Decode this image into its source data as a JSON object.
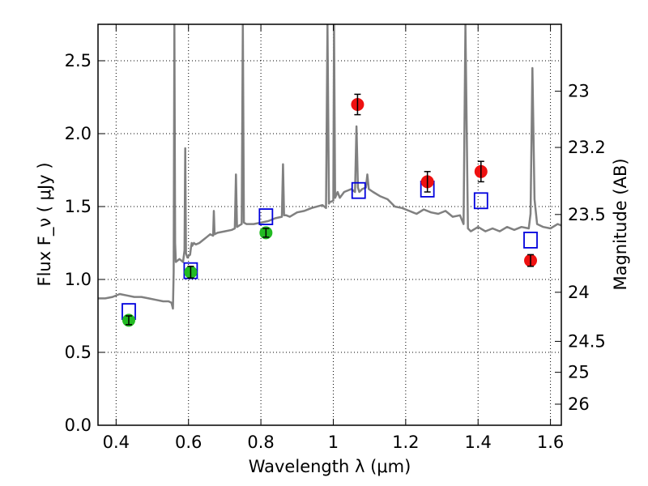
{
  "chart_data": {
    "type": "line",
    "xlabel": "Wavelength  λ (μm)",
    "ylabel": "Flux  F_ν  ( μJy )",
    "y2label": "Magnitude (AB)",
    "xlim": [
      0.35,
      1.63
    ],
    "ylim": [
      0.0,
      2.75
    ],
    "grid": true,
    "x_ticks": [
      0.4,
      0.6,
      0.8,
      1.0,
      1.2,
      1.4,
      1.6
    ],
    "x_tick_labels": [
      "0.4",
      "0.6",
      "0.8",
      "1",
      "1.2",
      "1.4",
      "1.6"
    ],
    "y_ticks": [
      0.0,
      0.5,
      1.0,
      1.5,
      2.0,
      2.5
    ],
    "y_tick_labels": [
      "0.0",
      "0.5",
      "1.0",
      "1.5",
      "2.0",
      "2.5"
    ],
    "magnitude_ticks": [
      {
        "label": "23",
        "mag": 23.0
      },
      {
        "label": "23.2",
        "mag": 23.2
      },
      {
        "label": "23.5",
        "mag": 23.5
      },
      {
        "label": "24",
        "mag": 24.0
      },
      {
        "label": "24.5",
        "mag": 24.5
      },
      {
        "label": "25",
        "mag": 25.0
      },
      {
        "label": "26",
        "mag": 26.0
      }
    ],
    "colors": {
      "model": "#808080",
      "red": "#ee1111",
      "green": "#22bb22",
      "model_photometry": "#0000dd",
      "errorbar": "#000000"
    },
    "model_spectrum": {
      "x": [
        0.35,
        0.37,
        0.39,
        0.41,
        0.43,
        0.45,
        0.47,
        0.49,
        0.51,
        0.53,
        0.545,
        0.553,
        0.557,
        0.559,
        0.561,
        0.563,
        0.565,
        0.57,
        0.575,
        0.58,
        0.585,
        0.589,
        0.591,
        0.593,
        0.597,
        0.6,
        0.6045,
        0.607,
        0.609,
        0.61,
        0.615,
        0.62,
        0.63,
        0.64,
        0.65,
        0.66,
        0.668,
        0.67,
        0.672,
        0.68,
        0.7,
        0.72,
        0.728,
        0.731,
        0.734,
        0.74,
        0.747,
        0.75,
        0.753,
        0.76,
        0.78,
        0.8,
        0.82,
        0.84,
        0.858,
        0.861,
        0.864,
        0.87,
        0.88,
        0.9,
        0.92,
        0.94,
        0.97,
        0.98,
        0.984,
        0.988,
        0.99,
        1.0,
        1.002,
        1.005,
        1.012,
        1.018,
        1.03,
        1.05,
        1.06,
        1.064,
        1.068,
        1.072,
        1.08,
        1.09,
        1.094,
        1.098,
        1.11,
        1.13,
        1.15,
        1.17,
        1.19,
        1.21,
        1.23,
        1.25,
        1.27,
        1.29,
        1.31,
        1.33,
        1.35,
        1.36,
        1.365,
        1.372,
        1.38,
        1.4,
        1.42,
        1.44,
        1.46,
        1.48,
        1.5,
        1.52,
        1.54,
        1.545,
        1.55,
        1.556,
        1.563,
        1.58,
        1.6,
        1.62,
        1.63
      ],
      "y": [
        0.87,
        0.87,
        0.88,
        0.9,
        0.89,
        0.88,
        0.88,
        0.87,
        0.86,
        0.85,
        0.85,
        0.84,
        0.8,
        1.05,
        2.75,
        1.25,
        1.12,
        1.13,
        1.14,
        1.13,
        1.12,
        1.2,
        1.9,
        1.18,
        1.15,
        1.16,
        1.17,
        1.22,
        1.25,
        1.23,
        1.25,
        1.24,
        1.25,
        1.27,
        1.29,
        1.31,
        1.3,
        1.47,
        1.31,
        1.32,
        1.33,
        1.34,
        1.35,
        1.72,
        1.36,
        1.37,
        1.38,
        2.75,
        1.39,
        1.38,
        1.38,
        1.39,
        1.4,
        1.42,
        1.43,
        1.79,
        1.44,
        1.44,
        1.43,
        1.46,
        1.47,
        1.49,
        1.51,
        1.49,
        2.75,
        1.52,
        1.53,
        1.54,
        2.75,
        1.56,
        1.6,
        1.56,
        1.6,
        1.62,
        1.6,
        2.05,
        1.63,
        1.6,
        1.62,
        1.63,
        1.72,
        1.62,
        1.6,
        1.57,
        1.55,
        1.5,
        1.49,
        1.47,
        1.45,
        1.48,
        1.46,
        1.45,
        1.47,
        1.43,
        1.44,
        1.38,
        2.75,
        1.35,
        1.33,
        1.36,
        1.33,
        1.35,
        1.33,
        1.36,
        1.34,
        1.36,
        1.35,
        1.45,
        2.45,
        1.55,
        1.38,
        1.36,
        1.35,
        1.38,
        1.37
      ]
    },
    "observed_red": [
      {
        "x": 1.067,
        "y": 2.2,
        "err": 0.07
      },
      {
        "x": 1.26,
        "y": 1.67,
        "err": 0.07
      },
      {
        "x": 1.408,
        "y": 1.74,
        "err": 0.07
      },
      {
        "x": 1.545,
        "y": 1.13,
        "err": 0.04
      }
    ],
    "observed_green": [
      {
        "x": 0.435,
        "y": 0.72,
        "err": 0.03
      },
      {
        "x": 0.606,
        "y": 1.05,
        "err": 0.04
      },
      {
        "x": 0.814,
        "y": 1.32,
        "err": 0.03
      }
    ],
    "model_photometry": [
      {
        "x": 0.435,
        "y": 0.78
      },
      {
        "x": 0.606,
        "y": 1.06
      },
      {
        "x": 0.814,
        "y": 1.43
      },
      {
        "x": 1.07,
        "y": 1.61
      },
      {
        "x": 1.26,
        "y": 1.62
      },
      {
        "x": 1.408,
        "y": 1.54
      },
      {
        "x": 1.545,
        "y": 1.27
      }
    ]
  }
}
